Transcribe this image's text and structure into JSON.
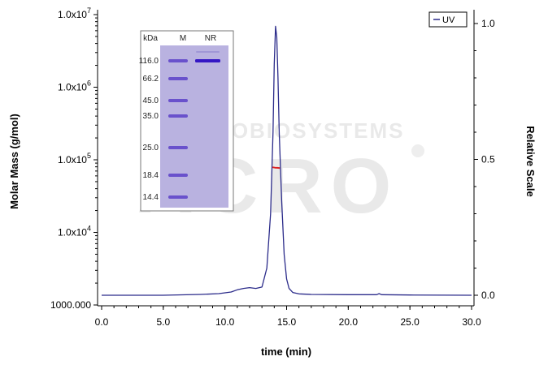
{
  "chart_data": {
    "type": "line",
    "xlabel": "time (min)",
    "ylabel_left": "Molar Mass (g/mol)",
    "ylabel_right": "Relative Scale",
    "xlim": [
      0,
      30
    ],
    "ylim_left": [
      1000,
      10000000
    ],
    "y_left_scale": "log",
    "ylim_right": [
      0,
      1
    ],
    "x_ticks": [
      "0.0",
      "5.0",
      "10.0",
      "15.0",
      "20.0",
      "25.0",
      "30.0"
    ],
    "y_left_ticks": [
      {
        "value": 1000,
        "base": "1000.000",
        "exp": ""
      },
      {
        "value": 10000,
        "base": "1.0x10",
        "exp": "4"
      },
      {
        "value": 100000,
        "base": "1.0x10",
        "exp": "5"
      },
      {
        "value": 1000000,
        "base": "1.0x10",
        "exp": "6"
      },
      {
        "value": 10000000,
        "base": "1.0x10",
        "exp": "7"
      }
    ],
    "y_right_ticks": [
      {
        "value": 0.0,
        "label": "0.0"
      },
      {
        "value": 0.5,
        "label": "0.5"
      },
      {
        "value": 1.0,
        "label": "1.0"
      }
    ],
    "legend": {
      "label": "UV",
      "position": "top-right"
    },
    "series": [
      {
        "name": "UV",
        "axis": "right",
        "color": "#2b2b8a",
        "x": [
          0,
          2,
          5,
          8,
          9.5,
          10.5,
          11,
          11.5,
          12,
          12.5,
          13,
          13.4,
          13.7,
          13.9,
          14.0,
          14.1,
          14.2,
          14.3,
          14.4,
          14.6,
          14.8,
          15.0,
          15.2,
          15.5,
          16,
          17,
          20,
          22.3,
          22.5,
          22.7,
          25,
          30
        ],
        "y": [
          0.0,
          0.0,
          0.0,
          0.003,
          0.006,
          0.012,
          0.02,
          0.025,
          0.028,
          0.025,
          0.03,
          0.1,
          0.3,
          0.6,
          0.85,
          0.99,
          0.95,
          0.8,
          0.6,
          0.35,
          0.15,
          0.06,
          0.025,
          0.01,
          0.005,
          0.003,
          0.002,
          0.002,
          0.006,
          0.002,
          0.001,
          0.0
        ]
      },
      {
        "name": "Molar Mass",
        "axis": "left",
        "color": "#dd2222",
        "x": [
          13.85,
          14.05,
          14.25,
          14.45
        ],
        "y": [
          79000,
          78000,
          77500,
          77000
        ]
      }
    ],
    "inset": {
      "headers": [
        "kDa",
        "M",
        "NR"
      ],
      "marker_labels": [
        "116.0",
        "66.2",
        "45.0",
        "35.0",
        "25.0",
        "18.4",
        "14.4"
      ],
      "colors": {
        "gel": "#b9b2e0",
        "band": "#5a3fc8",
        "sample_band": "#3416c4"
      }
    },
    "watermark": {
      "line1": "ACROBIOSYSTEMS",
      "line2": "ACRO"
    }
  }
}
